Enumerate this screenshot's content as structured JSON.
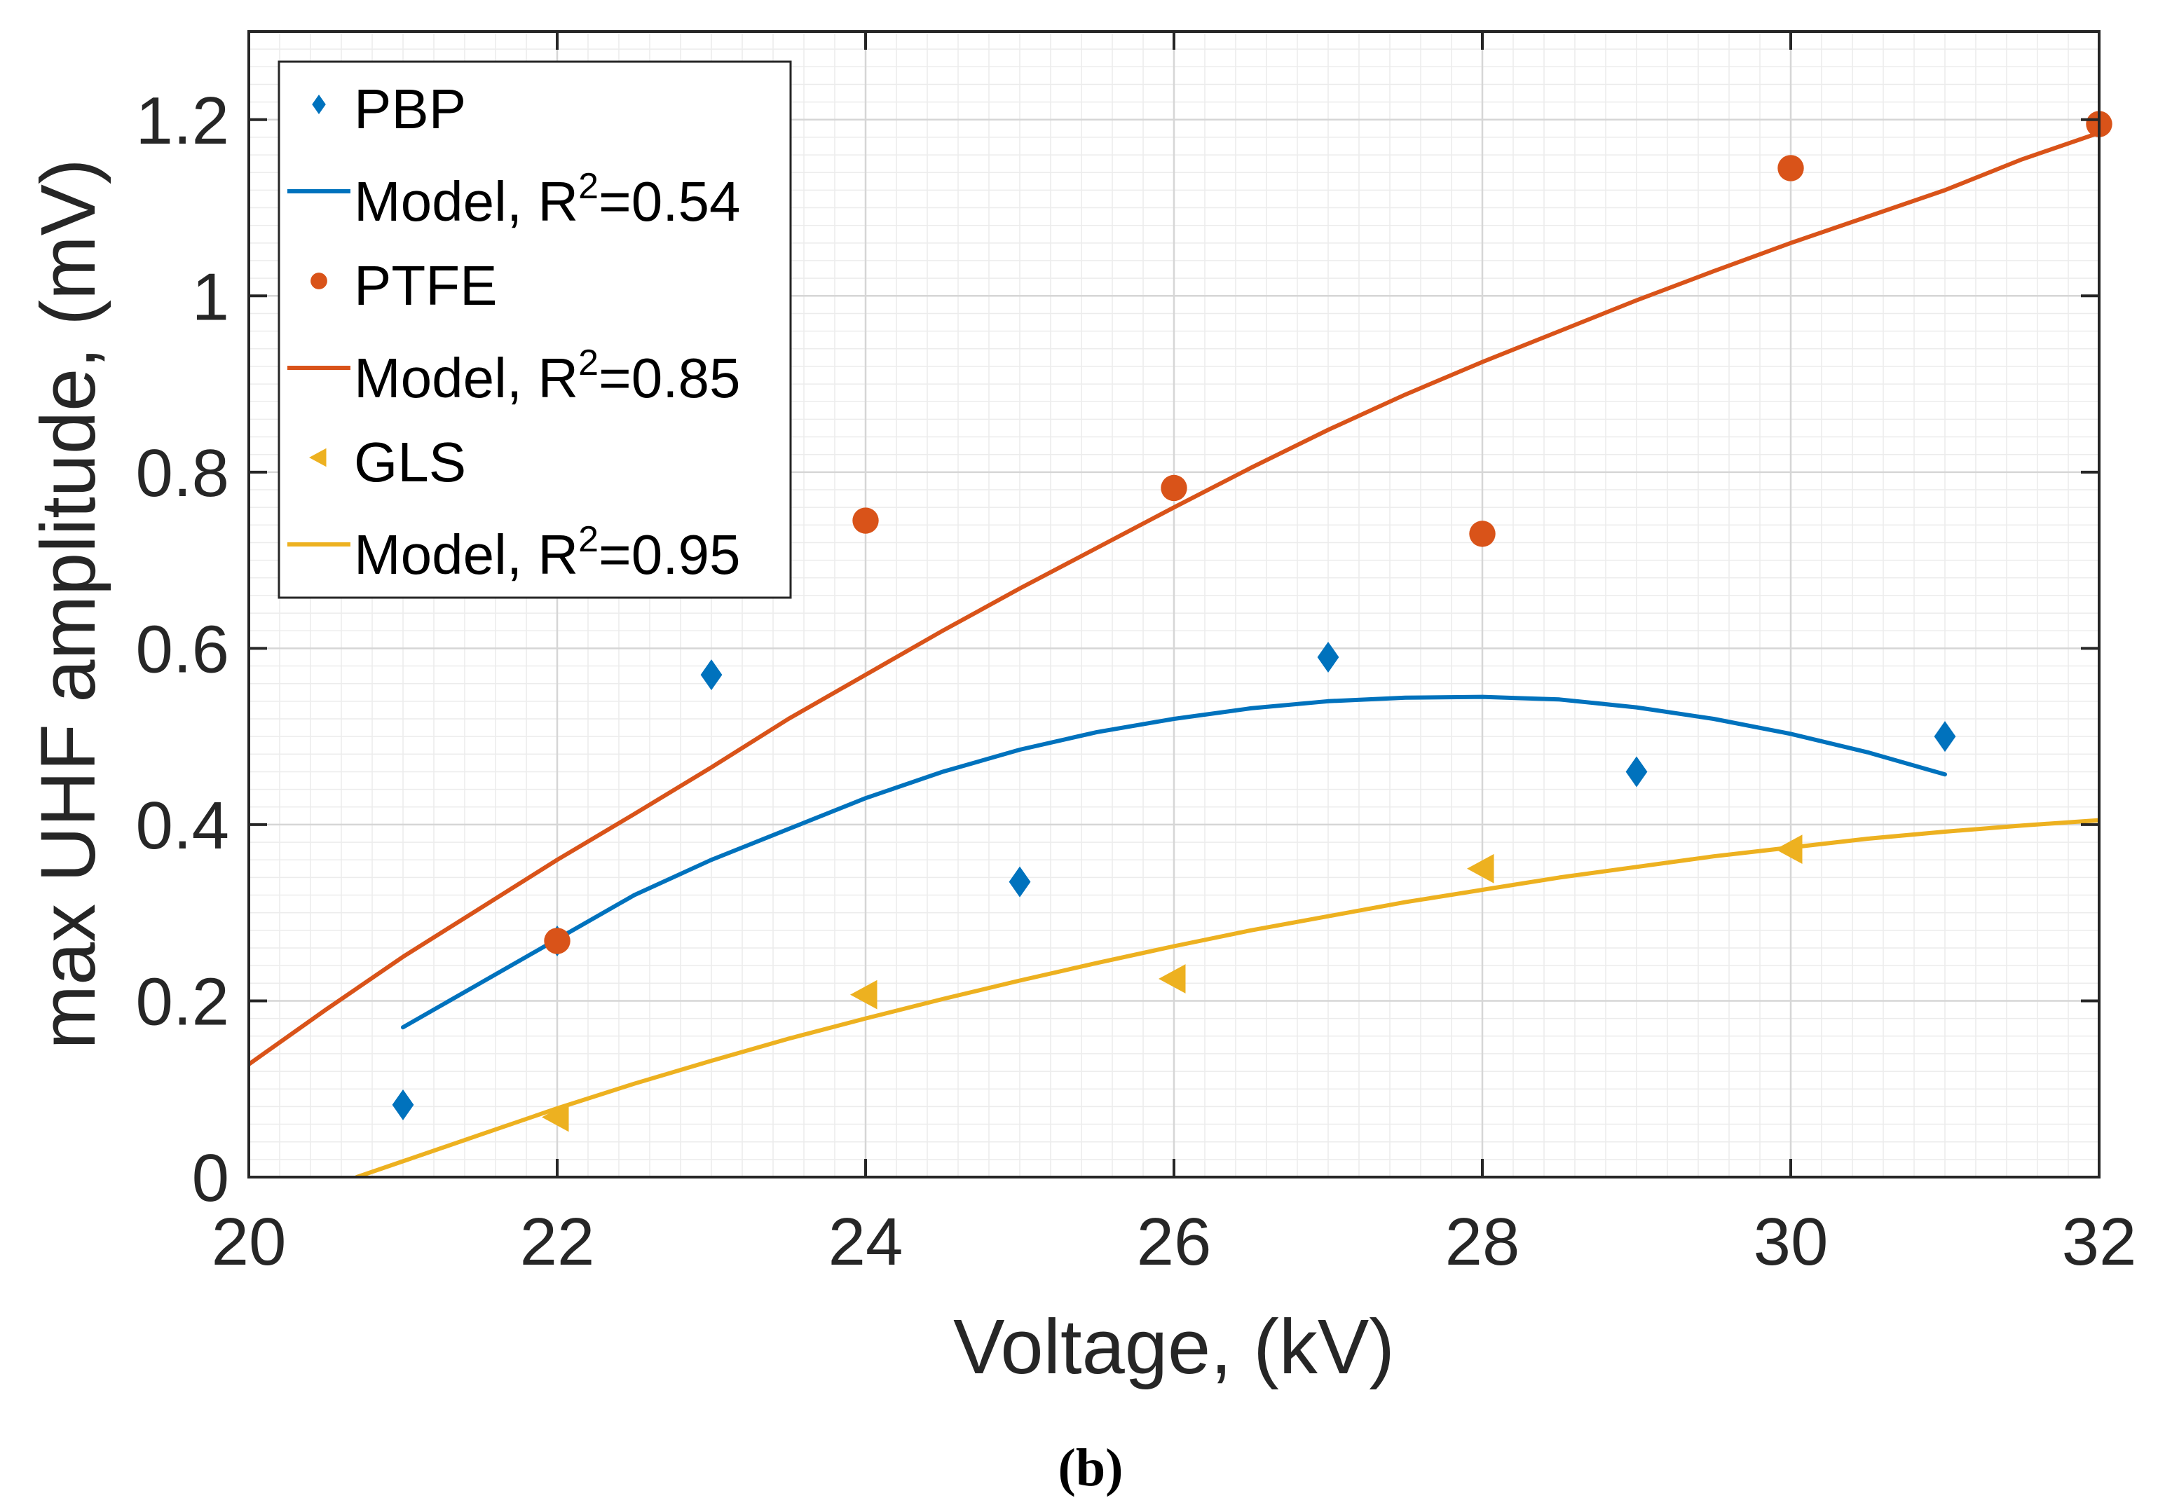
{
  "chart_data": {
    "type": "scatter",
    "xlabel": "Voltage, (kV)",
    "ylabel": "max UHF amplitude, (mV)",
    "xlim": [
      20,
      32
    ],
    "ylim": [
      0,
      1.3
    ],
    "xticks": [
      20,
      22,
      24,
      26,
      28,
      30,
      32
    ],
    "yticks": [
      0,
      0.2,
      0.4,
      0.6,
      0.8,
      1,
      1.2
    ],
    "ytick_labels": [
      "0",
      "0.2",
      "0.4",
      "0.6",
      "0.8",
      "1",
      "1.2"
    ],
    "grid": true,
    "minor_grid": true,
    "legend_position": "top-left",
    "panel_label": "b",
    "series": [
      {
        "name": "PBP",
        "kind": "markers",
        "marker": "diamond",
        "color": "#0072BD",
        "x": [
          21,
          22,
          23,
          25,
          27,
          29,
          31
        ],
        "y": [
          0.082,
          0.268,
          0.57,
          0.335,
          0.59,
          0.46,
          0.5
        ]
      },
      {
        "name": "Model",
        "r2_label": "R",
        "r2_sup": "2",
        "r2_value": "=0.54",
        "kind": "curve",
        "color": "#0072BD",
        "x": [
          21,
          21.5,
          22,
          22.5,
          23,
          23.5,
          24,
          24.5,
          25,
          25.5,
          26,
          26.5,
          27,
          27.5,
          28,
          28.5,
          29,
          29.5,
          30,
          30.5,
          31
        ],
        "y": [
          0.17,
          0.22,
          0.27,
          0.32,
          0.36,
          0.395,
          0.43,
          0.46,
          0.485,
          0.505,
          0.52,
          0.532,
          0.54,
          0.544,
          0.545,
          0.542,
          0.533,
          0.52,
          0.503,
          0.482,
          0.457
        ]
      },
      {
        "name": "PTFE",
        "kind": "markers",
        "marker": "circle",
        "color": "#D95319",
        "x": [
          22,
          24,
          26,
          28,
          30,
          32
        ],
        "y": [
          0.268,
          0.745,
          0.782,
          0.73,
          1.145,
          1.195
        ]
      },
      {
        "name": "Model",
        "r2_label": "R",
        "r2_sup": "2",
        "r2_value": "=0.85",
        "kind": "curve",
        "color": "#D95319",
        "x": [
          20,
          20.5,
          21,
          21.5,
          22,
          22.5,
          23,
          23.5,
          24,
          24.5,
          25,
          25.5,
          26,
          26.5,
          27,
          27.5,
          28,
          28.5,
          29,
          29.5,
          30,
          30.5,
          31,
          31.5,
          32
        ],
        "y": [
          0.128,
          0.19,
          0.25,
          0.305,
          0.36,
          0.412,
          0.465,
          0.52,
          0.57,
          0.62,
          0.668,
          0.714,
          0.76,
          0.805,
          0.848,
          0.888,
          0.925,
          0.96,
          0.995,
          1.028,
          1.06,
          1.09,
          1.12,
          1.155,
          1.185
        ]
      },
      {
        "name": "GLS",
        "kind": "markers",
        "marker": "triangle-left",
        "color": "#EDB120",
        "x": [
          22,
          24,
          26,
          28,
          30
        ],
        "y": [
          0.068,
          0.207,
          0.225,
          0.35,
          0.372
        ]
      },
      {
        "name": "Model",
        "r2_label": "R",
        "r2_sup": "2",
        "r2_value": "=0.95",
        "kind": "curve",
        "color": "#EDB120",
        "x": [
          20.7,
          21,
          21.5,
          22,
          22.5,
          23,
          23.5,
          24,
          24.5,
          25,
          25.5,
          26,
          26.5,
          27,
          27.5,
          28,
          28.5,
          29,
          29.5,
          30,
          30.5,
          31,
          31.5,
          32
        ],
        "y": [
          0,
          0.018,
          0.048,
          0.078,
          0.106,
          0.132,
          0.157,
          0.18,
          0.202,
          0.223,
          0.243,
          0.262,
          0.28,
          0.296,
          0.312,
          0.326,
          0.34,
          0.352,
          0.364,
          0.374,
          0.384,
          0.392,
          0.399,
          0.405
        ]
      }
    ]
  }
}
